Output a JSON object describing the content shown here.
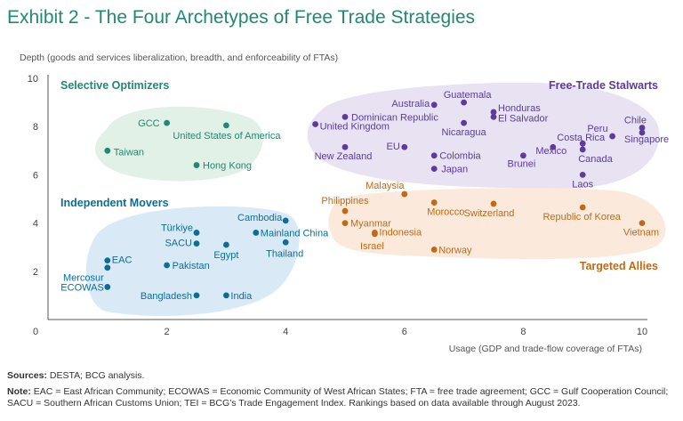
{
  "title": "Exhibit 2 - The Four Archetypes of Free Trade Strategies",
  "footer": {
    "sources_label": "Sources:",
    "sources_text": "DESTA; BCG analysis.",
    "note_label": "Note:",
    "note_text": "EAC = East African Community; ECOWAS = Economic Community of West African States; FTA = free trade agreement; GCC = Gulf Cooperation Council; SACU = Southern African Customs Union; TEI = BCG’s Trade Engagement Index. Rankings based on data available through August 2023."
  },
  "colors": {
    "selective": "#1f8a70",
    "independent": "#0a6e96",
    "stalwarts": "#5b3b9e",
    "targeted": "#c06a14",
    "selective_fill": "#e1f1e8",
    "independent_fill": "#d9eaf6",
    "stalwarts_fill": "#e8e2f3",
    "targeted_fill": "#fbeadb"
  },
  "chart_data": {
    "type": "scatter",
    "xlabel": "Usage (GDP and trade-flow coverage of FTAs)",
    "ylabel": "Depth (goods and services liberalization, breadth, and enforceability of FTAs)",
    "xlim": [
      0,
      10
    ],
    "ylim": [
      0,
      10
    ],
    "xticks": [
      0,
      2,
      4,
      6,
      8,
      10
    ],
    "yticks": [
      2,
      4,
      6,
      8,
      10
    ],
    "groups": [
      {
        "name": "Selective Optimizers",
        "key": "selective",
        "points": [
          {
            "label": "GCC",
            "x": 2.0,
            "y": 8.15
          },
          {
            "label": "United States of America",
            "x": 3.0,
            "y": 8.05
          },
          {
            "label": "Taiwan",
            "x": 1.0,
            "y": 7.0
          },
          {
            "label": "Hong Kong",
            "x": 2.5,
            "y": 6.4
          }
        ]
      },
      {
        "name": "Independent Movers",
        "key": "independent",
        "points": [
          {
            "label": "Cambodia",
            "x": 4.0,
            "y": 4.1
          },
          {
            "label": "Türkiye",
            "x": 2.5,
            "y": 3.6
          },
          {
            "label": "Mainland China",
            "x": 3.5,
            "y": 3.6
          },
          {
            "label": "SACU",
            "x": 2.5,
            "y": 3.15
          },
          {
            "label": "Egypt",
            "x": 3.0,
            "y": 3.1
          },
          {
            "label": "Thailand",
            "x": 4.0,
            "y": 3.2
          },
          {
            "label": "EAC",
            "x": 1.0,
            "y": 2.45
          },
          {
            "label": "Mercosur",
            "x": 1.0,
            "y": 2.15
          },
          {
            "label": "Pakistan",
            "x": 2.0,
            "y": 2.25
          },
          {
            "label": "ECOWAS",
            "x": 1.0,
            "y": 1.35
          },
          {
            "label": "Bangladesh",
            "x": 2.5,
            "y": 1.0
          },
          {
            "label": "India",
            "x": 3.0,
            "y": 1.0
          }
        ]
      },
      {
        "name": "Free-Trade Stalwarts",
        "key": "stalwarts",
        "points": [
          {
            "label": "Australia",
            "x": 6.5,
            "y": 8.9
          },
          {
            "label": "Guatemala",
            "x": 7.0,
            "y": 9.0
          },
          {
            "label": "Honduras",
            "x": 7.5,
            "y": 8.6
          },
          {
            "label": "El Salvador",
            "x": 7.5,
            "y": 8.4
          },
          {
            "label": "Dominican Republic",
            "x": 5.0,
            "y": 8.4
          },
          {
            "label": "United Kingdom",
            "x": 4.5,
            "y": 8.1
          },
          {
            "label": "Nicaragua",
            "x": 7.0,
            "y": 8.15
          },
          {
            "label": "Chile",
            "x": 10.0,
            "y": 7.95
          },
          {
            "label": "Singapore",
            "x": 10.0,
            "y": 7.75
          },
          {
            "label": "Peru",
            "x": 9.5,
            "y": 7.6
          },
          {
            "label": "Costa Rica",
            "x": 9.0,
            "y": 7.3
          },
          {
            "label": "New Zealand",
            "x": 5.0,
            "y": 7.15
          },
          {
            "label": "EU",
            "x": 6.0,
            "y": 7.15
          },
          {
            "label": "Mexico",
            "x": 8.5,
            "y": 7.15
          },
          {
            "label": "Colombia",
            "x": 6.5,
            "y": 6.8
          },
          {
            "label": "Canada",
            "x": 9.0,
            "y": 7.05
          },
          {
            "label": "Brunei",
            "x": 8.0,
            "y": 6.8
          },
          {
            "label": "Japan",
            "x": 6.5,
            "y": 6.25
          },
          {
            "label": "Laos",
            "x": 9.0,
            "y": 6.0
          }
        ]
      },
      {
        "name": "Targeted Allies",
        "key": "targeted",
        "points": [
          {
            "label": "Malaysia",
            "x": 6.0,
            "y": 5.2
          },
          {
            "label": "Philippines",
            "x": 5.0,
            "y": 4.5
          },
          {
            "label": "Morocco",
            "x": 6.5,
            "y": 4.85
          },
          {
            "label": "Switzerland",
            "x": 7.5,
            "y": 4.8
          },
          {
            "label": "Republic of Korea",
            "x": 9.0,
            "y": 4.65
          },
          {
            "label": "Myanmar",
            "x": 5.0,
            "y": 4.0
          },
          {
            "label": "Indonesia",
            "x": 5.5,
            "y": 3.6
          },
          {
            "label": "Vietnam",
            "x": 10.0,
            "y": 4.0
          },
          {
            "label": "Israel",
            "x": 5.5,
            "y": 3.55
          },
          {
            "label": "Norway",
            "x": 6.5,
            "y": 2.9
          }
        ]
      }
    ]
  }
}
